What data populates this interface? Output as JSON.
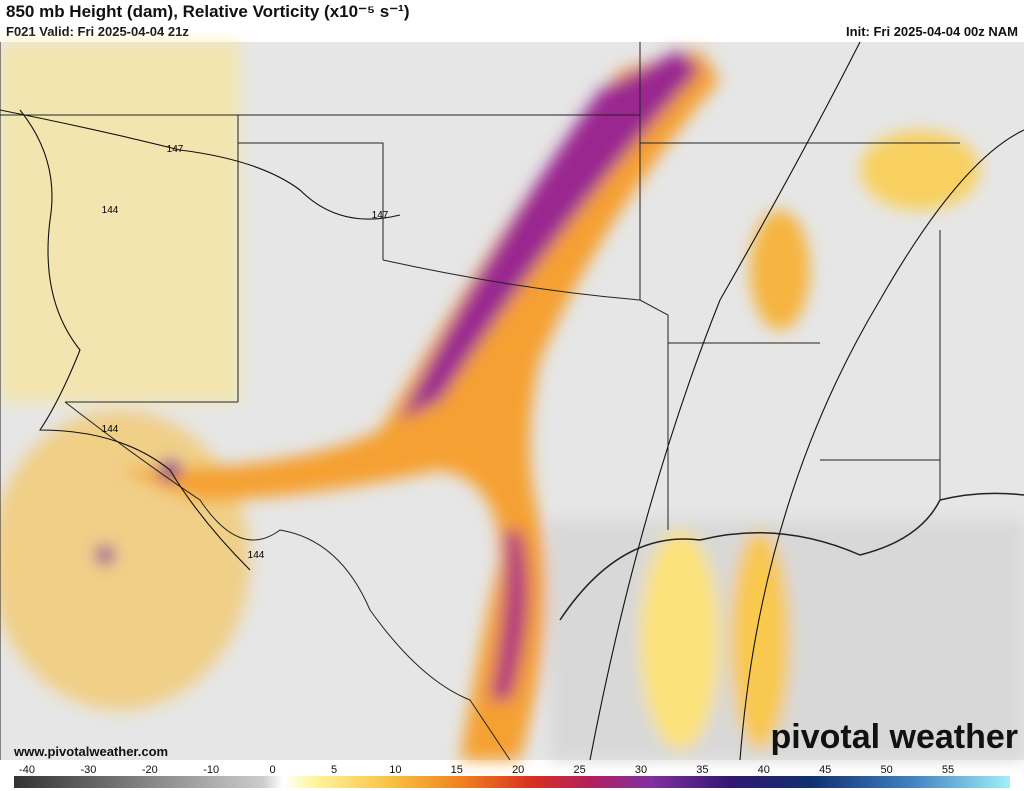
{
  "header": {
    "title": "850 mb Height (dam), Relative Vorticity (x10⁻⁵ s⁻¹)",
    "valid": "F021 Valid: Fri 2025-04-04 21z",
    "init": "Init: Fri 2025-04-04 00z NAM"
  },
  "contour_labels": [
    "147",
    "147",
    "144",
    "144",
    "144"
  ],
  "footer": {
    "website": "www.pivotalweather.com",
    "logo": "pivotal weather"
  },
  "colorbar": {
    "ticks": [
      -40,
      -30,
      -20,
      -10,
      0,
      5,
      10,
      15,
      20,
      25,
      30,
      35,
      40,
      45,
      50,
      55
    ]
  }
}
